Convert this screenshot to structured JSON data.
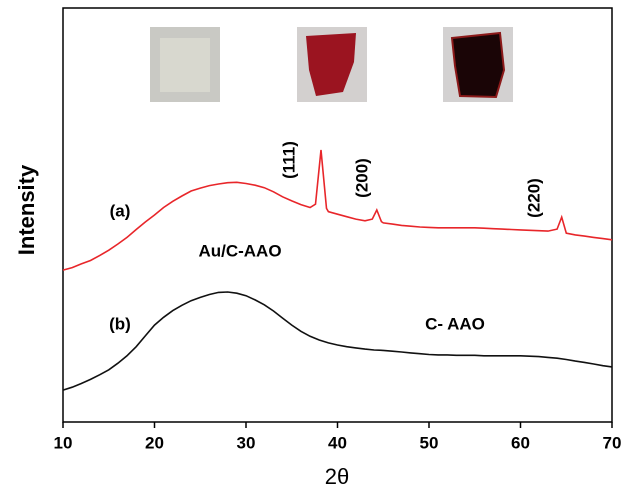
{
  "chart_data": {
    "type": "line",
    "xlabel": "2θ",
    "ylabel": "Intensity",
    "xlim": [
      10,
      70
    ],
    "xticks": [
      10,
      20,
      30,
      40,
      50,
      60,
      70
    ],
    "ylim": [
      0,
      100
    ],
    "annotations": [
      "(111)",
      "(200)",
      "(220)",
      "(a)",
      "(b)"
    ],
    "series": [
      {
        "name": "Au/C-AAO",
        "color": "#e8262a",
        "x": [
          10,
          11,
          12,
          13,
          14,
          15,
          16,
          17,
          18,
          19,
          20,
          21,
          22,
          23,
          24,
          25,
          26,
          27,
          28,
          29,
          30,
          31,
          32,
          33,
          34,
          35,
          36,
          37,
          37.6,
          38.2,
          38.8,
          39,
          40,
          41,
          42,
          43,
          43.8,
          44.3,
          44.8,
          45,
          46,
          47,
          48,
          49,
          50,
          51,
          52,
          53,
          54,
          55,
          56,
          57,
          58,
          59,
          60,
          61,
          62,
          63,
          64,
          64.5,
          65,
          66,
          67,
          68,
          69,
          70
        ],
        "values": [
          36.7,
          37.3,
          38.2,
          39.0,
          40.2,
          41.5,
          43.0,
          44.6,
          46.5,
          48.3,
          50.0,
          51.8,
          53.3,
          54.6,
          55.8,
          56.5,
          57.1,
          57.5,
          57.8,
          57.9,
          57.6,
          57.2,
          56.6,
          55.6,
          54.4,
          53.4,
          52.5,
          51.8,
          52.6,
          65.7,
          51.6,
          50.8,
          50.2,
          49.6,
          49.0,
          48.6,
          49.0,
          51.2,
          48.4,
          48.1,
          47.8,
          47.5,
          47.3,
          47.1,
          47.0,
          46.9,
          46.9,
          46.9,
          46.9,
          46.9,
          46.8,
          46.7,
          46.6,
          46.5,
          46.4,
          46.3,
          46.2,
          46.1,
          46.6,
          49.5,
          45.6,
          45.2,
          44.9,
          44.6,
          44.3,
          44.0
        ]
      },
      {
        "name": "C- AAO",
        "color": "#111111",
        "x": [
          10,
          11,
          12,
          13,
          14,
          15,
          16,
          17,
          18,
          19,
          20,
          21,
          22,
          23,
          24,
          25,
          26,
          27,
          28,
          29,
          30,
          31,
          32,
          33,
          34,
          35,
          36,
          37,
          38,
          39,
          40,
          41,
          42,
          43,
          44,
          45,
          46,
          47,
          48,
          49,
          50,
          51,
          52,
          53,
          54,
          55,
          56,
          57,
          58,
          59,
          60,
          61,
          62,
          63,
          64,
          65,
          66,
          67,
          68,
          69,
          70
        ],
        "values": [
          7.7,
          8.4,
          9.3,
          10.3,
          11.4,
          12.6,
          14.2,
          16.0,
          18.2,
          20.8,
          23.4,
          25.3,
          26.9,
          28.2,
          29.3,
          30.1,
          30.8,
          31.3,
          31.4,
          31.1,
          30.5,
          29.5,
          28.3,
          26.8,
          25.1,
          23.4,
          21.9,
          20.7,
          19.8,
          19.1,
          18.6,
          18.2,
          17.9,
          17.6,
          17.4,
          17.3,
          17.1,
          16.9,
          16.7,
          16.5,
          16.3,
          16.2,
          16.2,
          16.1,
          16.1,
          16.1,
          16.0,
          16.0,
          16.0,
          16.0,
          16.0,
          15.9,
          15.8,
          15.6,
          15.4,
          15.1,
          14.7,
          14.4,
          14.0,
          13.6,
          13.3
        ]
      }
    ]
  }
}
